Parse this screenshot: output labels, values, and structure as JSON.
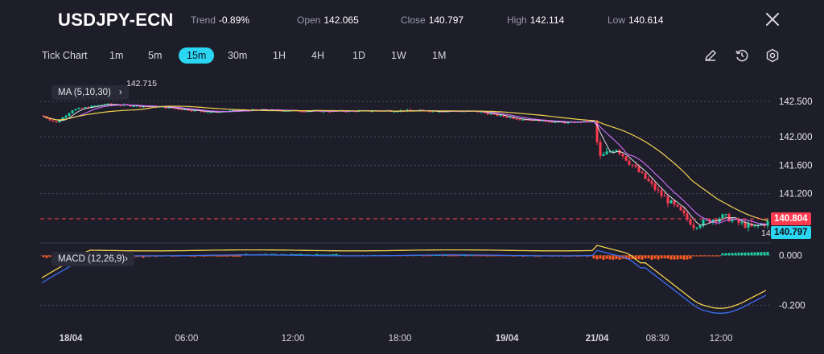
{
  "header": {
    "symbol": "USDJPY-ECN",
    "trend_label": "Trend",
    "trend_value": "-0.89%",
    "open_label": "Open",
    "open_value": "142.065",
    "close_label": "Close",
    "close_value": "140.797",
    "high_label": "High",
    "high_value": "142.114",
    "low_label": "Low",
    "low_value": "140.614"
  },
  "toolbar": {
    "timeframes": [
      "Tick Chart",
      "1m",
      "5m",
      "15m",
      "30m",
      "1H",
      "4H",
      "1D",
      "1W",
      "1M"
    ],
    "active": "15m",
    "icons": [
      "pencil-icon",
      "history-icon",
      "settings-icon"
    ]
  },
  "indicators": {
    "ma_label": "MA (5,10,30)",
    "macd_label": "MACD (12,26,9)"
  },
  "colors": {
    "bg": "#1e1d2a",
    "up": "#1fd3a6",
    "down": "#ff3b4f",
    "accent": "#2ad6f2",
    "ma5": "#ffffff",
    "ma10": "#d070ff",
    "ma30": "#f0d350",
    "macd_line": "#3b6ef0",
    "signal_line": "#f0d350",
    "hist_neg": "#ff5a1f",
    "hist_pos": "#1fd3a6"
  },
  "chart_data": {
    "type": "candlestick",
    "price_axis": {
      "ticks": [
        "142.500",
        "142.000",
        "141.600",
        "141.200"
      ],
      "range": [
        140.55,
        142.75
      ]
    },
    "macd_axis": {
      "ticks": [
        "0.000",
        "-0.200"
      ],
      "range": [
        -0.26,
        0.04
      ]
    },
    "time_axis": [
      "18/04",
      "06:00",
      "12:00",
      "18:00",
      "19/04",
      "21/04",
      "08:30",
      "12:00"
    ],
    "max_marker": "142.715",
    "min_marker_partial": "140",
    "last_price": "140.804",
    "close_price": "140.797",
    "macd_levels": [
      0.02,
      0.015,
      0.01,
      0.005,
      0.0,
      -0.005,
      -0.01,
      -0.02,
      -0.035,
      -0.05,
      -0.065,
      -0.08,
      -0.095,
      -0.11,
      -0.125,
      -0.14,
      -0.155,
      -0.17,
      -0.185,
      -0.2,
      -0.212,
      -0.22,
      -0.225,
      -0.23,
      -0.232,
      -0.23,
      -0.225,
      -0.218,
      -0.21,
      -0.2,
      -0.19,
      -0.18,
      -0.17,
      -0.16
    ]
  }
}
